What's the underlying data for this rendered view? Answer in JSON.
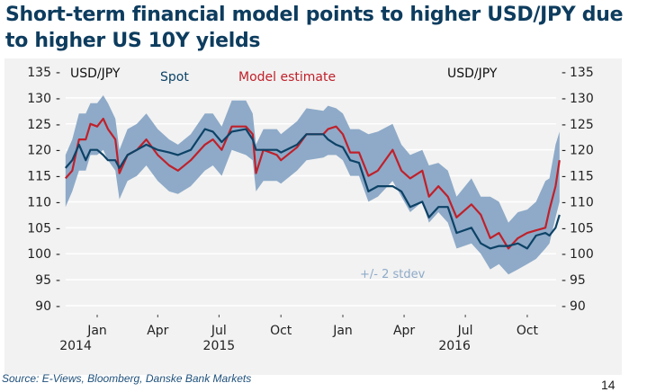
{
  "title": "Short-term financial model points to higher USD/JPY due to higher US 10Y yields",
  "source": "Source: E-Views, Bloomberg, Danske Bank Markets",
  "page_number": "14",
  "chart_data": {
    "type": "line",
    "title": "Short-term financial model points to higher USD/JPY due to higher US 10Y yields",
    "ylabel_left": "USD/JPY",
    "ylabel_right": "USD/JPY",
    "ylim": [
      90,
      135
    ],
    "yticks": [
      "135",
      "130",
      "125",
      "120",
      "115",
      "110",
      "105",
      "100",
      "95",
      "90"
    ],
    "grid": true,
    "legend_placement": "top",
    "xticks": [
      {
        "date": "2015-01-01",
        "label": "Jan"
      },
      {
        "date": "2015-04-01",
        "label": "Apr"
      },
      {
        "date": "2015-07-01",
        "label": "Jul"
      },
      {
        "date": "2015-10-01",
        "label": "Oct"
      },
      {
        "date": "2016-01-01",
        "label": "Jan"
      },
      {
        "date": "2016-04-01",
        "label": "Apr"
      },
      {
        "date": "2016-07-01",
        "label": "Jul"
      },
      {
        "date": "2016-10-01",
        "label": "Oct"
      }
    ],
    "year_labels": [
      {
        "label": "2014",
        "center": "2014-11-30"
      },
      {
        "label": "2015",
        "center": "2015-07-01"
      },
      {
        "label": "2016",
        "center": "2016-06-15"
      }
    ],
    "band_label": "+/- 2 stdev",
    "colors": {
      "spot": "#0d4266",
      "model": "#c0202a",
      "band": "#8eaac8",
      "panel": "#f2f2f2"
    },
    "x": [
      "2014-11-15",
      "2014-11-25",
      "2014-12-05",
      "2014-12-15",
      "2014-12-22",
      "2015-01-01",
      "2015-01-10",
      "2015-01-17",
      "2015-01-28",
      "2015-02-03",
      "2015-02-15",
      "2015-03-01",
      "2015-03-15",
      "2015-04-01",
      "2015-04-18",
      "2015-05-01",
      "2015-05-20",
      "2015-06-10",
      "2015-06-22",
      "2015-07-05",
      "2015-07-20",
      "2015-08-10",
      "2015-08-20",
      "2015-08-25",
      "2015-09-05",
      "2015-09-25",
      "2015-10-01",
      "2015-10-25",
      "2015-11-08",
      "2015-12-03",
      "2015-12-10",
      "2015-12-22",
      "2016-01-01",
      "2016-01-12",
      "2016-01-25",
      "2016-02-08",
      "2016-02-22",
      "2016-03-15",
      "2016-03-28",
      "2016-04-10",
      "2016-04-28",
      "2016-05-08",
      "2016-05-22",
      "2016-06-05",
      "2016-06-18",
      "2016-07-10",
      "2016-07-24",
      "2016-08-07",
      "2016-08-20",
      "2016-09-03",
      "2016-09-17",
      "2016-10-01",
      "2016-10-14",
      "2016-10-28",
      "2016-11-03",
      "2016-11-12",
      "2016-11-18"
    ],
    "series": [
      {
        "name": "Spot",
        "values": [
          116.5,
          118,
          121,
          118,
          120,
          120,
          119,
          118,
          118,
          116.5,
          119,
          120,
          121,
          120,
          119.5,
          119,
          120,
          124,
          123.5,
          121.5,
          123.5,
          124,
          122,
          120,
          120,
          120,
          119.5,
          121,
          123,
          123,
          122,
          121,
          120.5,
          118,
          117.5,
          112,
          113,
          113,
          112,
          109,
          110,
          107,
          109,
          109,
          104,
          105,
          102,
          101,
          101.5,
          101.5,
          102,
          101,
          103.5,
          104,
          103.5,
          105,
          107.5
        ]
      },
      {
        "name": "Model estimate",
        "values": [
          114.5,
          116,
          122,
          122,
          125,
          124.5,
          126,
          124,
          122,
          115.5,
          119,
          120,
          122,
          119,
          117,
          116,
          118,
          121,
          122,
          120,
          124.5,
          124.5,
          123,
          115.5,
          120,
          119,
          118,
          120.5,
          123,
          123,
          124,
          124.5,
          123,
          119.5,
          119.5,
          115,
          116,
          120,
          116,
          114.5,
          116,
          111,
          113,
          111,
          107,
          109.5,
          107.5,
          103,
          104,
          101,
          103,
          104,
          104.5,
          105,
          108.5,
          113,
          118
        ]
      }
    ],
    "band": {
      "name": "+/- 2 stdev",
      "lower": [
        109,
        112,
        116,
        116,
        119,
        119,
        120,
        118,
        116,
        110.5,
        114,
        115,
        117,
        114,
        112,
        111.5,
        113,
        116,
        117,
        115,
        120,
        119,
        118,
        112,
        114,
        114,
        113.5,
        116,
        118,
        118.5,
        119,
        119,
        118,
        115,
        115,
        110,
        111,
        114,
        111,
        108,
        110,
        106,
        108,
        106,
        101,
        102,
        100,
        97,
        98,
        96,
        97,
        98,
        99,
        101,
        102,
        107,
        110
      ],
      "upper": [
        119,
        122,
        127,
        127,
        129,
        129,
        130.5,
        129,
        126,
        120,
        124,
        125,
        127,
        124,
        122,
        121,
        123,
        127,
        127,
        124.5,
        129.5,
        129.5,
        127,
        121,
        124,
        124,
        123,
        125.5,
        128,
        127.5,
        128.5,
        128,
        127,
        124,
        124,
        123,
        123.5,
        125,
        121,
        119,
        120,
        117,
        117.5,
        116,
        111,
        114.5,
        111,
        111,
        110,
        106,
        108,
        108.5,
        110,
        114,
        114.5,
        121,
        123.5
      ]
    }
  }
}
